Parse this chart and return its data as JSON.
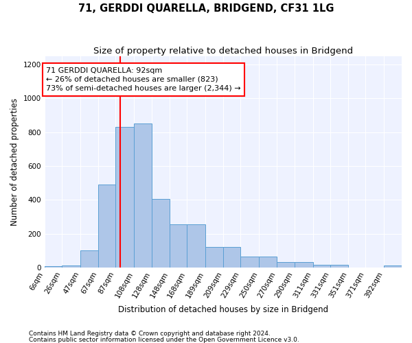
{
  "title": "71, GERDDI QUARELLA, BRIDGEND, CF31 1LG",
  "subtitle": "Size of property relative to detached houses in Bridgend",
  "xlabel": "Distribution of detached houses by size in Bridgend",
  "ylabel": "Number of detached properties",
  "footnote1": "Contains HM Land Registry data © Crown copyright and database right 2024.",
  "footnote2": "Contains public sector information licensed under the Open Government Licence v3.0.",
  "bar_color": "#aec6e8",
  "bar_edge_color": "#5a9fd4",
  "vline_color": "red",
  "vline_x": 92,
  "annotation_text": "71 GERDDI QUARELLA: 92sqm\n← 26% of detached houses are smaller (823)\n73% of semi-detached houses are larger (2,344) →",
  "bin_edges": [
    6,
    26,
    47,
    67,
    87,
    108,
    128,
    148,
    168,
    189,
    209,
    229,
    250,
    270,
    290,
    311,
    331,
    351,
    371,
    392,
    412
  ],
  "bar_heights": [
    8,
    12,
    100,
    490,
    830,
    850,
    405,
    255,
    255,
    120,
    120,
    65,
    65,
    30,
    30,
    15,
    15,
    0,
    0,
    10
  ],
  "ylim": [
    0,
    1250
  ],
  "yticks": [
    0,
    200,
    400,
    600,
    800,
    1000,
    1200
  ],
  "background_color": "#eef2ff",
  "grid_color": "white",
  "title_fontsize": 10.5,
  "subtitle_fontsize": 9.5,
  "axis_label_fontsize": 8.5,
  "tick_fontsize": 7.5,
  "footnote_fontsize": 6.5
}
